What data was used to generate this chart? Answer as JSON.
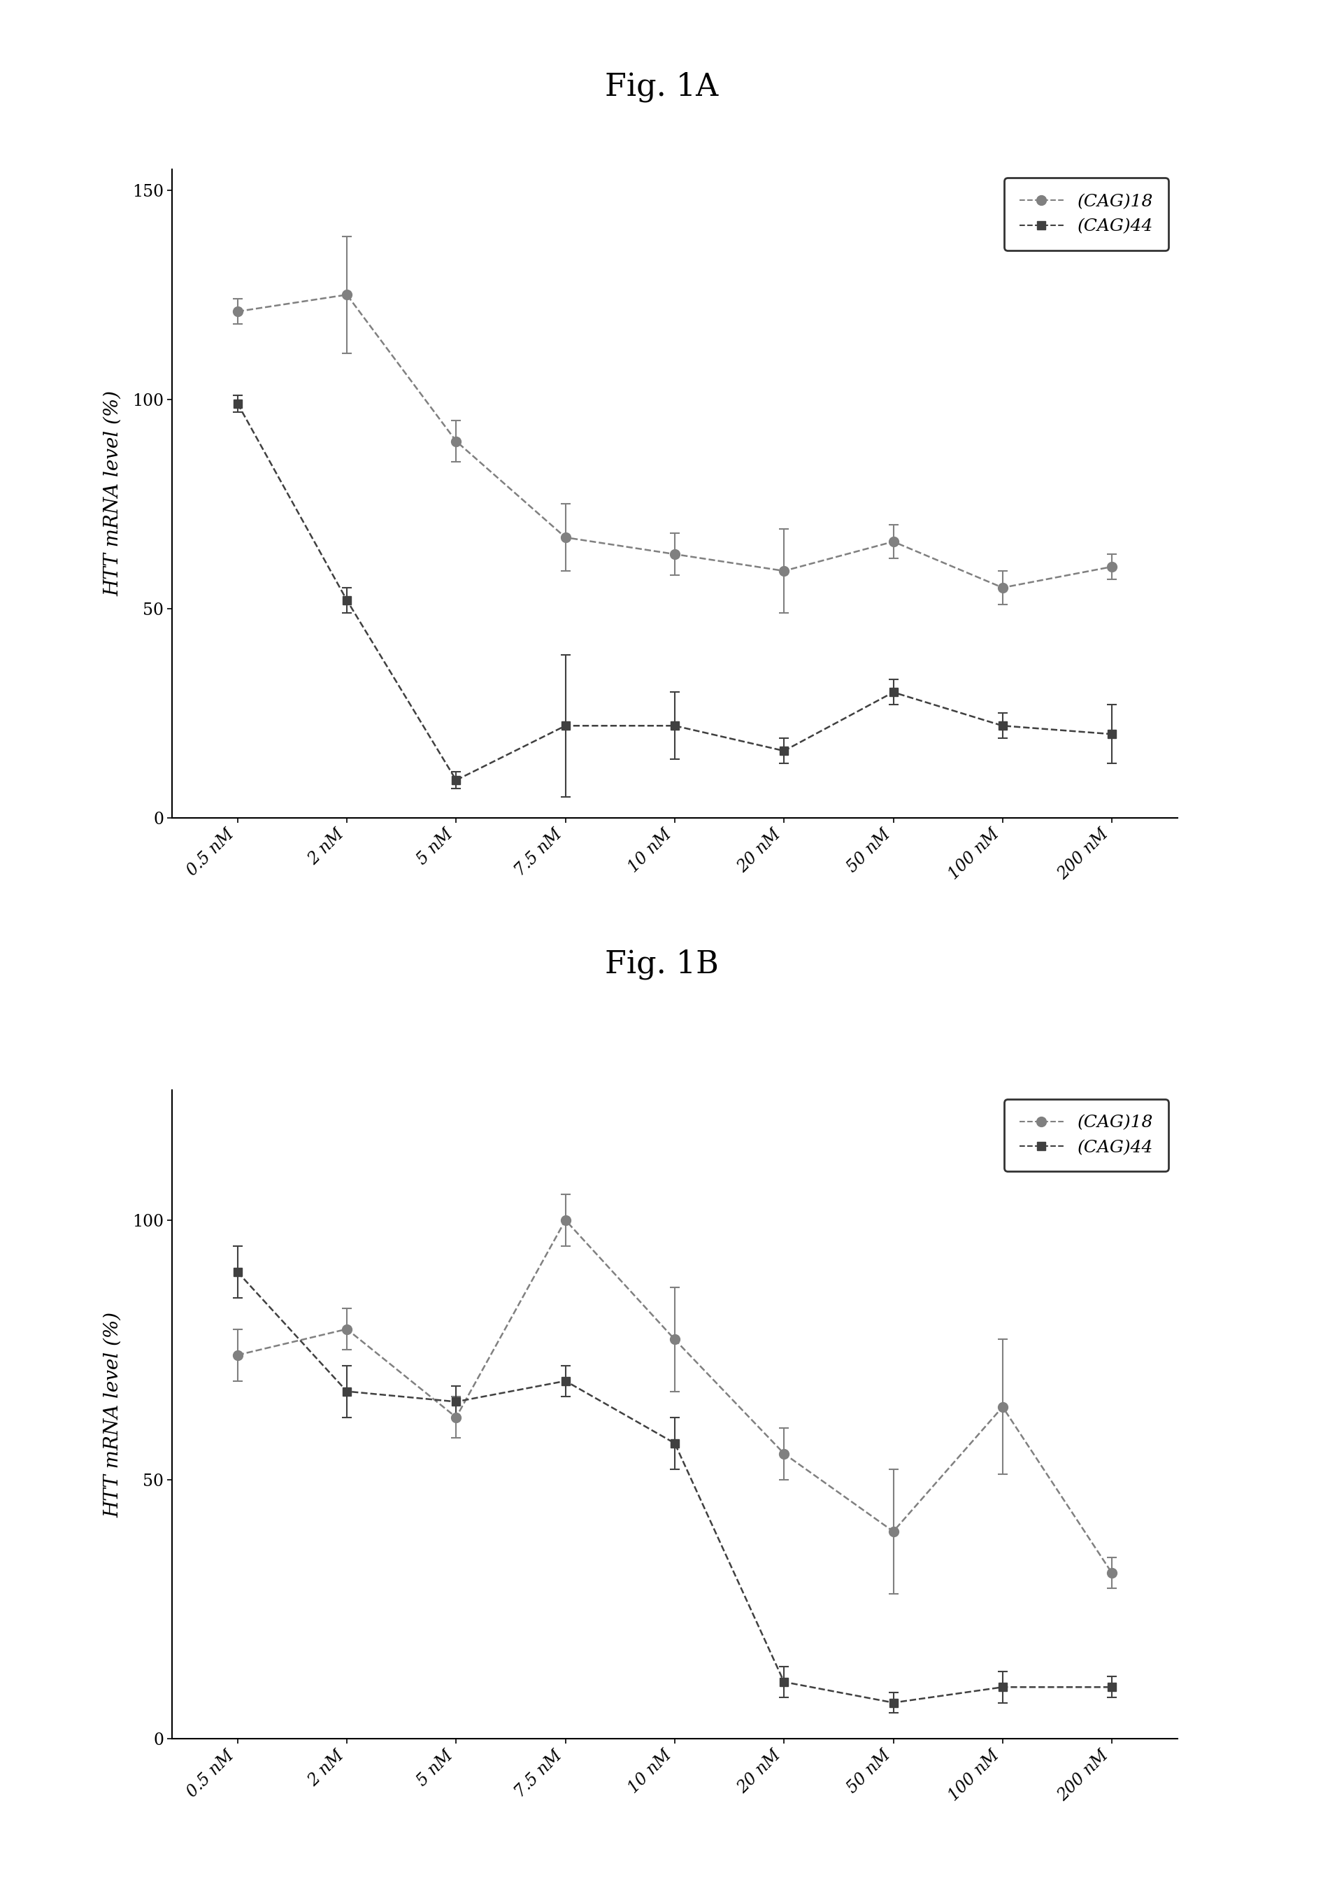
{
  "fig_title_A": "Fig. 1A",
  "fig_title_B": "Fig. 1B",
  "ylabel": "HTT mRNA level (%)",
  "x_labels": [
    "0.5 nM",
    "2 nM",
    "5 nM",
    "7.5 nM",
    "10 nM",
    "20 nM",
    "50 nM",
    "100 nM",
    "200 nM"
  ],
  "A_cag18_y": [
    121,
    125,
    90,
    67,
    63,
    59,
    66,
    55,
    60
  ],
  "A_cag18_err": [
    3,
    14,
    5,
    8,
    5,
    10,
    4,
    4,
    3
  ],
  "A_cag44_y": [
    99,
    52,
    9,
    22,
    22,
    16,
    30,
    22,
    20
  ],
  "A_cag44_err": [
    2,
    3,
    2,
    17,
    8,
    3,
    3,
    3,
    7
  ],
  "B_cag18_y": [
    74,
    79,
    62,
    100,
    77,
    55,
    40,
    64,
    32
  ],
  "B_cag18_err": [
    5,
    4,
    4,
    5,
    10,
    5,
    12,
    13,
    3
  ],
  "B_cag44_y": [
    90,
    67,
    65,
    69,
    57,
    11,
    7,
    10,
    10
  ],
  "B_cag44_err": [
    5,
    5,
    3,
    3,
    5,
    3,
    2,
    3,
    2
  ],
  "A_ylim": [
    0,
    155
  ],
  "A_yticks": [
    0,
    50,
    100,
    150
  ],
  "B_ylim": [
    0,
    125
  ],
  "B_yticks": [
    0,
    50,
    100
  ],
  "color_cag18": "#808080",
  "color_cag44": "#404040",
  "bg_color": "#ffffff",
  "legend_label_18": "(CAG)18",
  "legend_label_44": "(CAG)44",
  "title_fontsize": 32,
  "label_fontsize": 20,
  "tick_fontsize": 17,
  "legend_fontsize": 18
}
